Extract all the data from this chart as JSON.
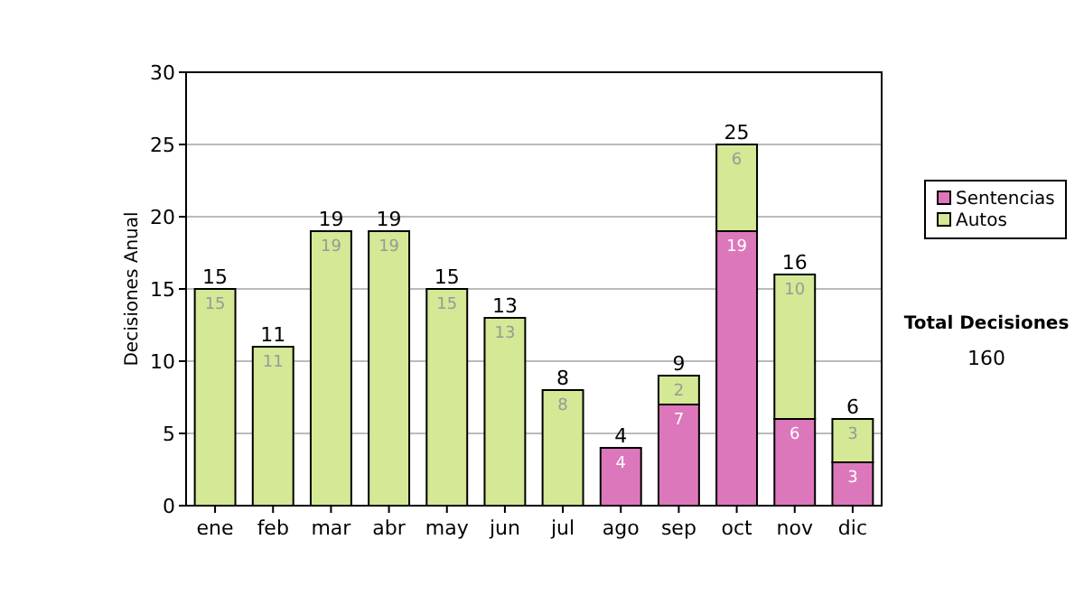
{
  "chart_data": {
    "type": "bar",
    "stacked": true,
    "ylabel": "Decisiones Anual",
    "categories": [
      "ene",
      "feb",
      "mar",
      "abr",
      "may",
      "jun",
      "jul",
      "ago",
      "sep",
      "oct",
      "nov",
      "dic"
    ],
    "series": [
      {
        "name": "Sentencias",
        "color": "#dd77bb",
        "values": [
          0,
          0,
          0,
          0,
          0,
          0,
          0,
          4,
          7,
          19,
          6,
          3
        ],
        "value_labels": [
          null,
          null,
          null,
          null,
          null,
          null,
          null,
          "4",
          "7",
          "19",
          "6",
          "3"
        ]
      },
      {
        "name": "Autos",
        "color": "#d4e895",
        "values": [
          15,
          11,
          19,
          19,
          15,
          13,
          8,
          0,
          2,
          6,
          10,
          3
        ],
        "value_labels": [
          "15",
          "11",
          "19",
          "19",
          "15",
          "13",
          "8",
          null,
          "2",
          "6",
          "10",
          "3"
        ]
      }
    ],
    "totals": [
      "15",
      "11",
      "19",
      "19",
      "15",
      "13",
      "8",
      "4",
      "9",
      "25",
      "16",
      "6"
    ],
    "ylim": [
      0,
      30
    ],
    "yticks": [
      0,
      5,
      10,
      15,
      20,
      25,
      30
    ],
    "grid": "y",
    "legend": "right",
    "annotations": [
      "Total Decisiones",
      "160"
    ]
  }
}
